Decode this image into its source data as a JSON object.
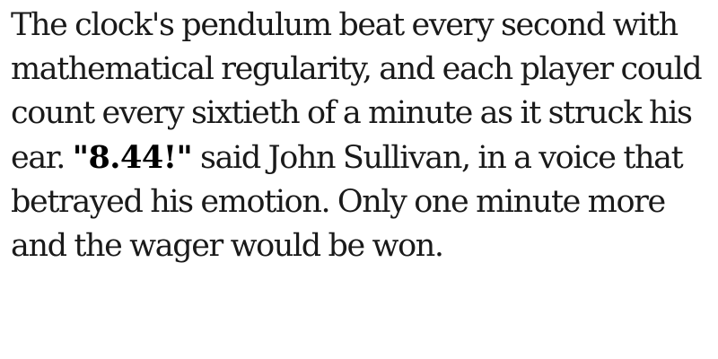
{
  "passage": {
    "text_before": "The clock's pendulum beat every second with mathematical regularity, and each player could count every sixtieth of a minute as it struck his ear. ",
    "emphasis": "\"8.44!\"",
    "text_after": " said John Sullivan, in a voice that betrayed his emotion. Only one minute more and the wager would be won."
  },
  "colors": {
    "text": "#1a1a1a",
    "emphasis": "#000000",
    "background": "#ffffff"
  }
}
